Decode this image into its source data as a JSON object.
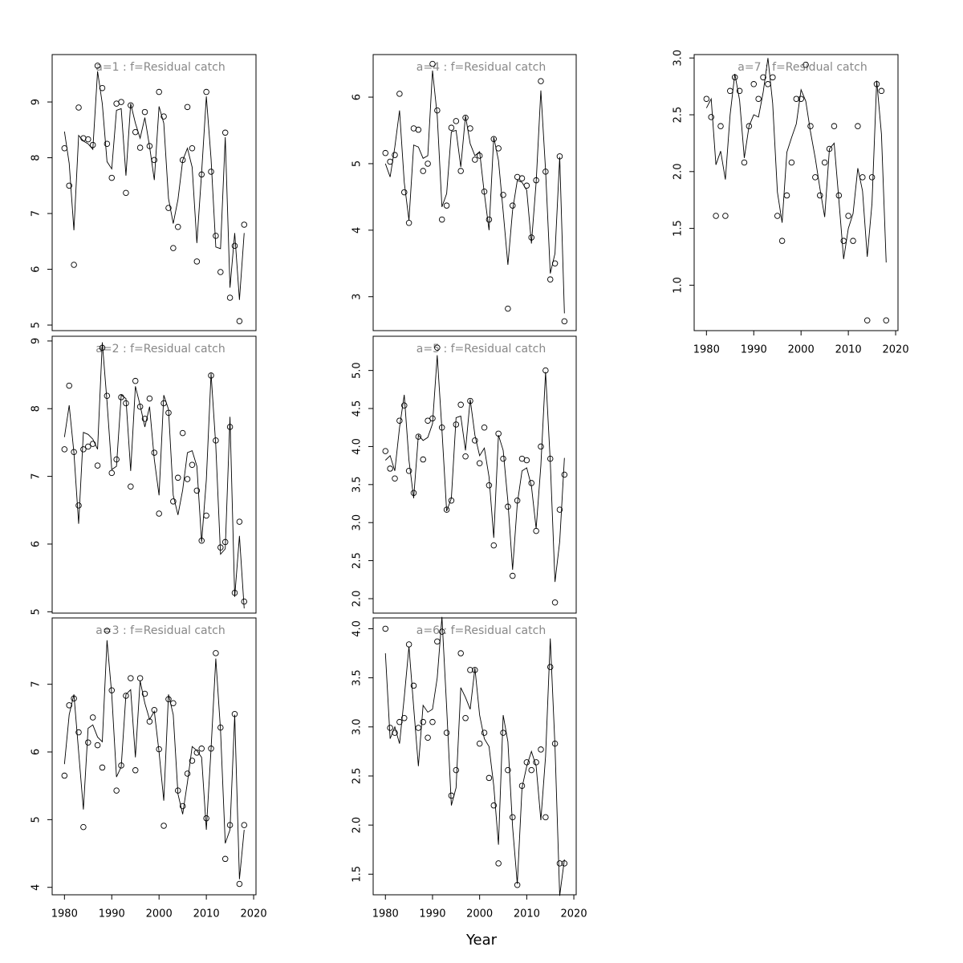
{
  "xlabel": "Year",
  "chart_data": [
    {
      "type": "line",
      "title": "a=1  :  f=Residual catch",
      "x": [
        1980,
        1981,
        1982,
        1983,
        1984,
        1985,
        1986,
        1987,
        1988,
        1989,
        1990,
        1991,
        1992,
        1993,
        1994,
        1995,
        1996,
        1997,
        1998,
        1999,
        2000,
        2001,
        2002,
        2003,
        2004,
        2005,
        2006,
        2007,
        2008,
        2009,
        2010,
        2011,
        2012,
        2013,
        2014,
        2015,
        2016,
        2017,
        2018
      ],
      "series": [
        {
          "style": "points",
          "color": "#000000",
          "values": [
            8.17,
            7.5,
            6.08,
            8.9,
            8.35,
            8.33,
            8.23,
            9.65,
            9.25,
            8.25,
            7.64,
            8.97,
            9.0,
            7.37,
            8.94,
            8.46,
            8.18,
            8.82,
            8.21,
            7.96,
            9.18,
            8.74,
            7.1,
            6.38,
            6.76,
            7.96,
            8.91,
            8.17,
            6.14,
            7.7,
            9.18,
            7.75,
            6.6,
            5.95,
            8.45,
            5.49,
            6.42,
            5.07,
            6.8
          ]
        },
        {
          "style": "line",
          "color": "#000000",
          "values": [
            8.47,
            7.9,
            6.7,
            8.4,
            8.3,
            8.25,
            8.15,
            9.55,
            8.97,
            7.93,
            7.8,
            8.85,
            8.88,
            7.68,
            8.97,
            8.62,
            8.35,
            8.72,
            8.2,
            7.6,
            8.92,
            8.62,
            7.27,
            6.82,
            7.25,
            7.95,
            8.17,
            7.83,
            6.47,
            7.73,
            9.1,
            7.98,
            6.4,
            6.37,
            8.37,
            5.67,
            6.65,
            5.45,
            6.65
          ]
        }
      ],
      "xlim": [
        1977.4,
        2020.5
      ],
      "ylim": [
        4.9,
        9.85
      ],
      "yticks": [
        5,
        6,
        7,
        8,
        9
      ]
    },
    {
      "type": "line",
      "title": "a=2  :  f=Residual catch",
      "x": [
        1980,
        1981,
        1982,
        1983,
        1984,
        1985,
        1986,
        1987,
        1988,
        1989,
        1990,
        1991,
        1992,
        1993,
        1994,
        1995,
        1996,
        1997,
        1998,
        1999,
        2000,
        2001,
        2002,
        2003,
        2004,
        2005,
        2006,
        2007,
        2008,
        2009,
        2010,
        2011,
        2012,
        2013,
        2014,
        2015,
        2016,
        2017,
        2018
      ],
      "series": [
        {
          "style": "points",
          "color": "#000000",
          "values": [
            7.4,
            8.34,
            7.36,
            6.57,
            7.4,
            7.44,
            7.48,
            7.16,
            8.9,
            8.19,
            7.05,
            7.25,
            8.17,
            8.08,
            6.85,
            8.41,
            8.03,
            7.85,
            8.15,
            7.35,
            6.45,
            8.08,
            7.94,
            6.63,
            6.98,
            7.64,
            6.96,
            7.17,
            6.79,
            6.05,
            6.42,
            8.49,
            7.53,
            5.95,
            6.03,
            7.73,
            5.28,
            6.33,
            5.15
          ]
        },
        {
          "style": "line",
          "color": "#000000",
          "values": [
            7.58,
            8.05,
            7.35,
            6.3,
            7.65,
            7.62,
            7.55,
            7.4,
            8.98,
            8.1,
            7.1,
            7.15,
            8.2,
            8.15,
            7.08,
            8.33,
            8.05,
            7.73,
            8.03,
            7.25,
            6.72,
            8.2,
            7.99,
            6.72,
            6.43,
            6.8,
            7.35,
            7.38,
            7.15,
            6.03,
            6.95,
            8.52,
            7.45,
            5.85,
            5.93,
            7.88,
            5.22,
            6.12,
            5.05
          ]
        }
      ],
      "xlim": [
        1977.4,
        2020.5
      ],
      "ylim": [
        4.98,
        9.07
      ],
      "yticks": [
        5,
        6,
        7,
        8,
        9
      ]
    },
    {
      "type": "line",
      "title": "a=3  :  f=Residual catch",
      "x": [
        1980,
        1981,
        1982,
        1983,
        1984,
        1985,
        1986,
        1987,
        1988,
        1989,
        1990,
        1991,
        1992,
        1993,
        1994,
        1995,
        1996,
        1997,
        1998,
        1999,
        2000,
        2001,
        2002,
        2003,
        2004,
        2005,
        2006,
        2007,
        2008,
        2009,
        2010,
        2011,
        2012,
        2013,
        2014,
        2015,
        2016,
        2017,
        2018
      ],
      "series": [
        {
          "style": "points",
          "color": "#000000",
          "values": [
            5.65,
            6.69,
            6.79,
            6.29,
            4.89,
            6.14,
            6.51,
            6.1,
            5.77,
            7.79,
            6.91,
            5.43,
            5.8,
            6.83,
            7.09,
            5.73,
            7.09,
            6.86,
            6.45,
            6.62,
            6.04,
            4.91,
            6.78,
            6.72,
            5.43,
            5.2,
            5.68,
            5.87,
            5.99,
            6.05,
            5.02,
            6.05,
            7.46,
            6.36,
            4.42,
            4.92,
            6.56,
            4.05,
            4.92
          ]
        },
        {
          "style": "line",
          "color": "#000000",
          "values": [
            5.82,
            6.55,
            6.85,
            6.0,
            5.15,
            6.35,
            6.4,
            6.22,
            6.15,
            7.65,
            6.85,
            5.63,
            5.78,
            6.85,
            6.92,
            5.92,
            7.05,
            6.72,
            6.48,
            6.6,
            6.0,
            5.28,
            6.85,
            6.55,
            5.38,
            5.08,
            5.55,
            6.08,
            6.02,
            5.92,
            4.85,
            6.05,
            7.38,
            6.32,
            4.65,
            4.85,
            6.55,
            4.12,
            4.85
          ]
        }
      ],
      "xlim": [
        1977.4,
        2020.5
      ],
      "ylim": [
        3.89,
        7.98
      ],
      "yticks": [
        4,
        5,
        6,
        7
      ],
      "xticks": [
        1980,
        1990,
        2000,
        2010,
        2020
      ]
    },
    {
      "type": "line",
      "title": "a=4  :  f=Residual catch",
      "x": [
        1980,
        1981,
        1982,
        1983,
        1984,
        1985,
        1986,
        1987,
        1988,
        1989,
        1990,
        1991,
        1992,
        1993,
        1994,
        1995,
        1996,
        1997,
        1998,
        1999,
        2000,
        2001,
        2002,
        2003,
        2004,
        2005,
        2006,
        2007,
        2008,
        2009,
        2010,
        2011,
        2012,
        2013,
        2014,
        2015,
        2016,
        2017,
        2018
      ],
      "series": [
        {
          "style": "points",
          "color": "#000000",
          "values": [
            5.16,
            5.03,
            5.13,
            6.05,
            4.57,
            4.11,
            5.53,
            5.51,
            4.89,
            5.0,
            6.5,
            5.8,
            4.16,
            4.37,
            5.54,
            5.64,
            4.89,
            5.69,
            5.53,
            5.06,
            5.12,
            4.58,
            4.16,
            5.37,
            5.23,
            4.53,
            2.82,
            4.37,
            4.8,
            4.78,
            4.67,
            3.89,
            4.75,
            6.24,
            4.88,
            3.26,
            3.5,
            5.11,
            2.63
          ]
        },
        {
          "style": "line",
          "color": "#000000",
          "values": [
            5.0,
            4.8,
            5.25,
            5.8,
            4.72,
            4.15,
            5.28,
            5.25,
            5.08,
            5.12,
            6.4,
            5.72,
            4.35,
            4.55,
            5.48,
            5.5,
            4.95,
            5.72,
            5.3,
            5.12,
            5.18,
            4.55,
            4.0,
            5.4,
            5.05,
            4.28,
            3.48,
            4.3,
            4.75,
            4.72,
            4.6,
            3.8,
            4.72,
            6.1,
            4.9,
            3.35,
            3.65,
            5.1,
            2.75
          ]
        }
      ],
      "xlim": [
        1977.4,
        2020.5
      ],
      "ylim": [
        2.49,
        6.64
      ],
      "yticks": [
        3,
        4,
        5,
        6
      ]
    },
    {
      "type": "line",
      "title": "a=5  :  f=Residual catch",
      "x": [
        1980,
        1981,
        1982,
        1983,
        1984,
        1985,
        1986,
        1987,
        1988,
        1989,
        1990,
        1991,
        1992,
        1993,
        1994,
        1995,
        1996,
        1997,
        1998,
        1999,
        2000,
        2001,
        2002,
        2003,
        2004,
        2005,
        2006,
        2007,
        2008,
        2009,
        2010,
        2011,
        2012,
        2013,
        2014,
        2015,
        2016,
        2017,
        2018
      ],
      "series": [
        {
          "style": "points",
          "color": "#000000",
          "values": [
            3.94,
            3.71,
            3.58,
            4.34,
            4.54,
            3.68,
            3.39,
            4.13,
            3.83,
            4.34,
            4.37,
            5.3,
            4.25,
            3.17,
            3.29,
            4.29,
            4.55,
            3.87,
            4.6,
            4.08,
            3.78,
            4.25,
            3.49,
            2.7,
            4.17,
            3.84,
            3.21,
            2.3,
            3.29,
            3.84,
            3.82,
            3.52,
            2.89,
            4.0,
            5.0,
            3.84,
            1.95,
            3.17,
            3.63
          ]
        },
        {
          "style": "line",
          "color": "#000000",
          "values": [
            3.82,
            3.88,
            3.68,
            4.25,
            4.68,
            3.82,
            3.32,
            4.15,
            4.08,
            4.12,
            4.3,
            5.2,
            4.22,
            3.15,
            3.32,
            4.38,
            4.4,
            3.95,
            4.62,
            4.15,
            3.88,
            3.98,
            3.6,
            2.8,
            4.15,
            3.95,
            3.28,
            2.38,
            3.25,
            3.68,
            3.72,
            3.48,
            2.92,
            3.75,
            4.98,
            3.8,
            2.22,
            2.75,
            3.85
          ]
        }
      ],
      "xlim": [
        1977.4,
        2020.5
      ],
      "ylim": [
        1.81,
        5.45
      ],
      "yticks": [
        {
          "value": 2,
          "label": "2.0"
        },
        2.5,
        {
          "value": 3,
          "label": "3.0"
        },
        3.5,
        {
          "value": 4,
          "label": "4.0"
        },
        4.5,
        {
          "value": 5,
          "label": "5.0"
        }
      ]
    },
    {
      "type": "line",
      "title": "a=6  :  f=Residual catch",
      "x": [
        1980,
        1981,
        1982,
        1983,
        1984,
        1985,
        1986,
        1987,
        1988,
        1989,
        1990,
        1991,
        1992,
        1993,
        1994,
        1995,
        1996,
        1997,
        1998,
        1999,
        2000,
        2001,
        2002,
        2003,
        2004,
        2005,
        2006,
        2007,
        2008,
        2009,
        2010,
        2011,
        2012,
        2013,
        2014,
        2015,
        2016,
        2017,
        2018
      ],
      "series": [
        {
          "style": "points",
          "color": "#000000",
          "values": [
            4.0,
            2.99,
            2.94,
            3.05,
            3.09,
            3.84,
            3.42,
            2.99,
            3.05,
            2.89,
            3.05,
            3.87,
            3.97,
            2.94,
            2.3,
            2.56,
            3.75,
            3.09,
            3.58,
            3.58,
            2.83,
            2.94,
            2.48,
            2.2,
            1.61,
            2.94,
            2.56,
            2.08,
            1.39,
            2.4,
            2.64,
            2.56,
            2.64,
            2.77,
            2.08,
            3.61,
            2.83,
            1.61,
            1.61
          ]
        },
        {
          "style": "line",
          "color": "#000000",
          "values": [
            3.75,
            2.88,
            3.0,
            2.83,
            3.3,
            3.82,
            3.2,
            2.6,
            3.22,
            3.15,
            3.18,
            3.5,
            4.12,
            3.2,
            2.2,
            2.38,
            3.4,
            3.3,
            3.18,
            3.6,
            3.12,
            2.88,
            2.8,
            2.4,
            1.8,
            3.12,
            2.85,
            1.98,
            1.4,
            2.38,
            2.6,
            2.75,
            2.6,
            2.05,
            2.7,
            3.9,
            2.8,
            1.28,
            1.65
          ]
        }
      ],
      "xlim": [
        1977.4,
        2020.5
      ],
      "ylim": [
        1.29,
        4.11
      ],
      "yticks": [
        1.5,
        {
          "value": 2,
          "label": "2.0"
        },
        2.5,
        {
          "value": 3,
          "label": "3.0"
        },
        3.5,
        {
          "value": 4,
          "label": "4.0"
        }
      ],
      "xticks": [
        1980,
        1990,
        2000,
        2010,
        2020
      ]
    },
    {
      "type": "line",
      "title": "a=7  :  f=Residual catch",
      "x": [
        1980,
        1981,
        1982,
        1983,
        1984,
        1985,
        1986,
        1987,
        1988,
        1989,
        1990,
        1991,
        1992,
        1993,
        1994,
        1995,
        1996,
        1997,
        1998,
        1999,
        2000,
        2001,
        2002,
        2003,
        2004,
        2005,
        2006,
        2007,
        2008,
        2009,
        2010,
        2011,
        2012,
        2013,
        2014,
        2015,
        2016,
        2017,
        2018
      ],
      "series": [
        {
          "style": "points",
          "color": "#000000",
          "values": [
            2.64,
            2.48,
            1.61,
            2.4,
            1.61,
            2.71,
            2.83,
            2.71,
            2.08,
            2.4,
            2.77,
            2.64,
            2.83,
            2.77,
            2.83,
            1.61,
            1.39,
            1.79,
            2.08,
            2.64,
            2.64,
            2.94,
            2.4,
            1.95,
            1.79,
            2.08,
            2.2,
            2.4,
            1.79,
            1.39,
            1.61,
            1.39,
            2.4,
            1.95,
            0.69,
            1.95,
            2.77,
            2.71,
            0.69
          ]
        },
        {
          "style": "line",
          "color": "#000000",
          "values": [
            2.56,
            2.64,
            2.06,
            2.18,
            1.93,
            2.5,
            2.86,
            2.63,
            2.12,
            2.4,
            2.5,
            2.48,
            2.7,
            3.0,
            2.6,
            1.82,
            1.55,
            2.17,
            2.3,
            2.42,
            2.72,
            2.62,
            2.35,
            2.12,
            1.85,
            1.6,
            2.2,
            2.25,
            1.75,
            1.23,
            1.5,
            1.63,
            2.03,
            1.83,
            1.25,
            1.72,
            2.8,
            2.33,
            1.2
          ]
        }
      ],
      "xlim": [
        1977.4,
        2020.5
      ],
      "ylim": [
        0.6,
        3.03
      ],
      "yticks": [
        {
          "value": 1,
          "label": "1.0"
        },
        1.5,
        {
          "value": 2,
          "label": "2.0"
        },
        2.5,
        {
          "value": 3,
          "label": "3.0"
        }
      ],
      "xticks": [
        1980,
        1990,
        2000,
        2010,
        2020
      ]
    }
  ]
}
